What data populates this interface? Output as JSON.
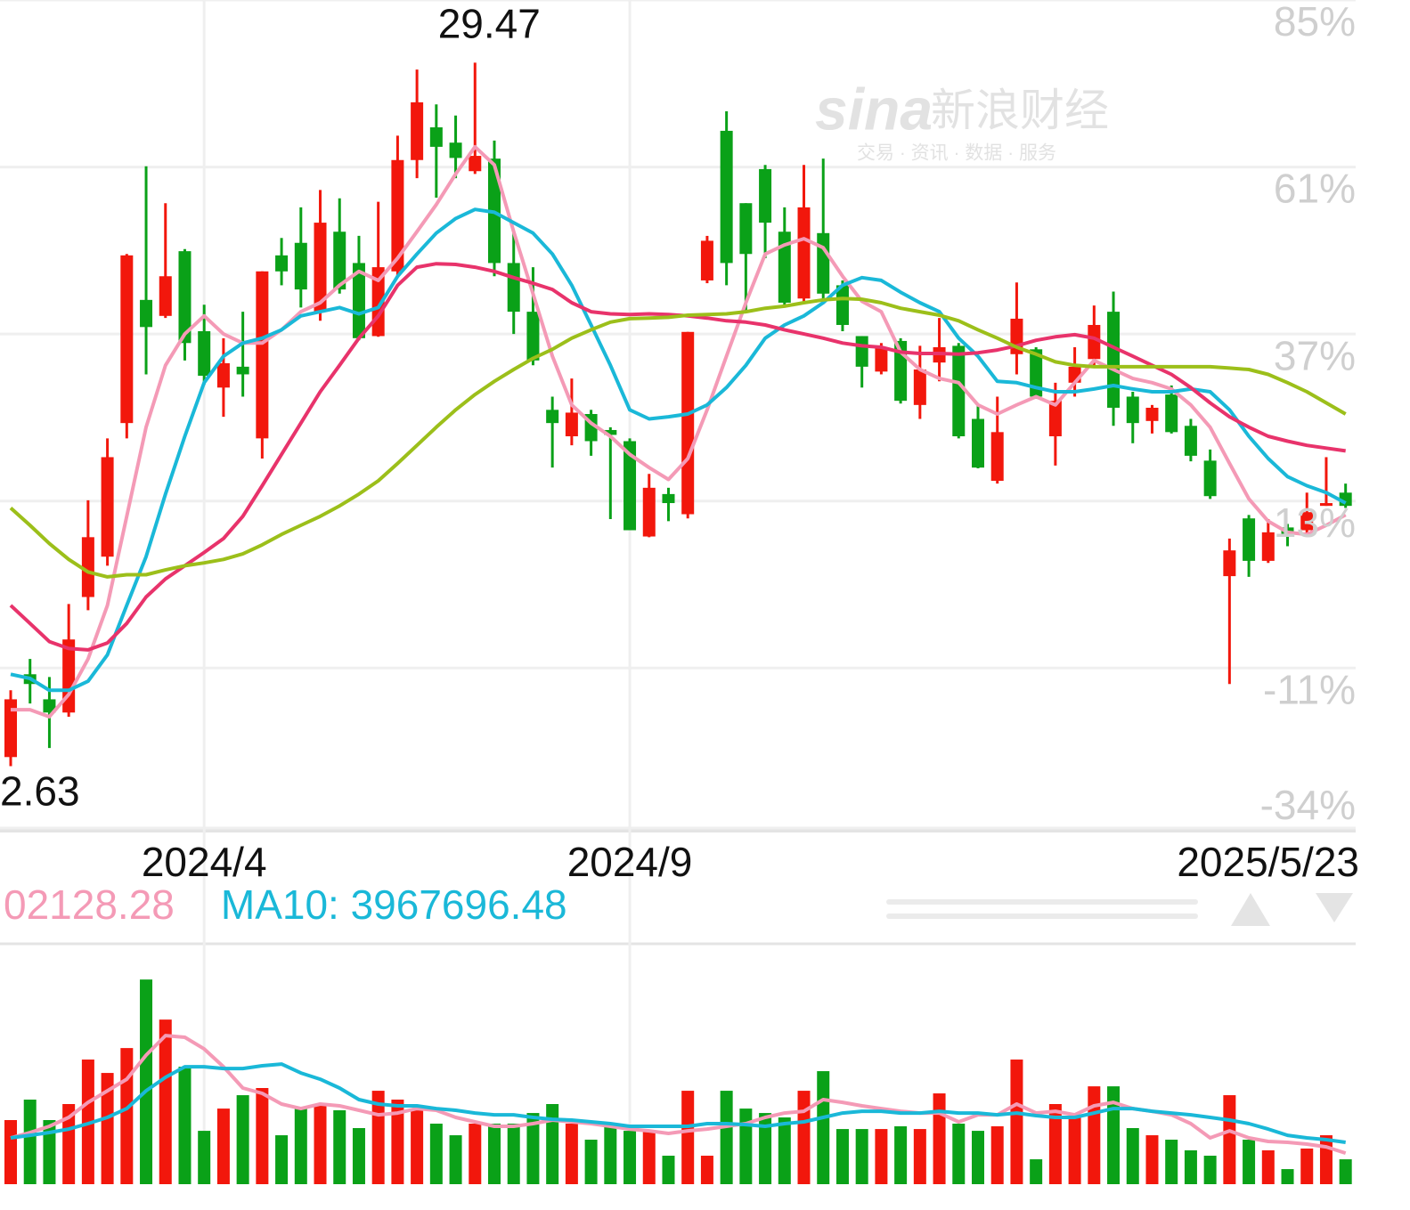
{
  "chart_data": [
    {
      "type": "candlestick",
      "categories": [
        null,
        null,
        null,
        null,
        null,
        null,
        null,
        null,
        null,
        null,
        "2024/4",
        null,
        null,
        null,
        null,
        null,
        null,
        null,
        null,
        null,
        null,
        null,
        null,
        null,
        null,
        null,
        null,
        null,
        null,
        null,
        null,
        null,
        "2024/9",
        null,
        null,
        null,
        null,
        null,
        null,
        null,
        null,
        null,
        null,
        null,
        null,
        null,
        null,
        null,
        null,
        null,
        null,
        null,
        null,
        null,
        null,
        null,
        null,
        null,
        null,
        null,
        null,
        null,
        null,
        null,
        null,
        null,
        null,
        null,
        null,
        "2025/5/23"
      ],
      "open": [
        -23.8,
        -11.9,
        -15.5,
        -17.4,
        -0.8,
        5,
        24.2,
        41.9,
        39.6,
        48.9,
        37.4,
        29.3,
        32.3,
        22,
        48.3,
        50.1,
        40.2,
        51.7,
        47.2,
        36.7,
        46,
        62,
        66.7,
        64.5,
        60.4,
        62.2,
        47.2,
        40.2,
        26.1,
        22.3,
        25.5,
        23.2,
        21.6,
        7.9,
        14,
        11.1,
        44.7,
        66.2,
        55.8,
        60.7,
        51.7,
        42.1,
        51.5,
        44,
        36.7,
        31.6,
        36,
        26.8,
        32.9,
        35.3,
        24.8,
        15.9,
        34.1,
        34.8,
        22.3,
        30,
        33.4,
        40.2,
        28,
        24.5,
        28.3,
        23.8,
        18.8,
        2.2,
        10.5,
        4.4,
        9.2,
        8.8,
        12.3,
        14.2
      ],
      "high": [
        -14.2,
        -9.7,
        -12.3,
        -1.8,
        13.1,
        22,
        48.5,
        61.1,
        55.8,
        49.2,
        41.2,
        36.4,
        40.2,
        46,
        50.8,
        55.2,
        57.7,
        56.5,
        51.1,
        56,
        65.5,
        75,
        70,
        68.4,
        76,
        64.8,
        51.7,
        46.6,
        28,
        30.6,
        26.1,
        23.6,
        22,
        16.9,
        14.9,
        37.3,
        51.1,
        69,
        55.8,
        61.3,
        55.2,
        61.3,
        62.2,
        44.7,
        36.7,
        35.7,
        36.4,
        35.3,
        39.3,
        35.7,
        26.8,
        28,
        44.4,
        35.1,
        30,
        35.1,
        41.1,
        43.1,
        28.7,
        26.8,
        29.6,
        24.8,
        20.4,
        7.6,
        11,
        10.4,
        9.7,
        14.2,
        19.3,
        15.5
      ],
      "low": [
        -25.1,
        -16.1,
        -22.5,
        -18,
        -2.7,
        3.7,
        22,
        31.2,
        39.3,
        33.2,
        29.7,
        25.1,
        28,
        19.1,
        44,
        40.8,
        38.9,
        42.8,
        36.1,
        36.6,
        45.3,
        59.4,
        56.6,
        59.4,
        60,
        45.3,
        37,
        32.5,
        17.8,
        21,
        19.5,
        10.4,
        8.8,
        7.8,
        10.1,
        10.5,
        44.3,
        44,
        40.2,
        47.9,
        41.2,
        41.5,
        42.1,
        37.4,
        29.3,
        31.2,
        27,
        24.8,
        30.2,
        22,
        17.7,
        15.5,
        31.2,
        27.7,
        18.1,
        28,
        32.1,
        23.8,
        21.3,
        22.7,
        22.7,
        18.7,
        13.3,
        -13.3,
        2.1,
        4.1,
        6.5,
        8.2,
        12.3,
        12
      ],
      "close": [
        -15.5,
        -13.3,
        -17.4,
        -6.9,
        7.8,
        19.3,
        48.3,
        38,
        45.3,
        35.7,
        31,
        32.8,
        31.2,
        46,
        46,
        43.4,
        53,
        43.4,
        36.4,
        46.6,
        62,
        70.3,
        63.9,
        62.3,
        62.6,
        47.2,
        40.2,
        33.2,
        24.2,
        25.7,
        21.6,
        22.5,
        8.8,
        14.9,
        12.7,
        37.3,
        50.4,
        47.2,
        48.5,
        53,
        41.5,
        55.2,
        42.8,
        38.3,
        32.3,
        35.1,
        27.4,
        31.9,
        35.1,
        22.3,
        17.8,
        22.9,
        39.2,
        28,
        27.4,
        32.3,
        38.3,
        26.4,
        24.2,
        26.4,
        22.9,
        19.5,
        13.7,
        5.9,
        4.4,
        8.5,
        8.2,
        11.4,
        12.7,
        12.3
      ],
      "up_color": "#f2170c",
      "down_color": "#0aa118",
      "series": [
        {
          "color": "#f49ab6",
          "values": [
            -17,
            -17,
            -18,
            -14.8,
            -9.7,
            -2,
            10.8,
            23.6,
            32.5,
            37,
            39.6,
            37,
            35.7,
            35.7,
            37.6,
            40.2,
            41.5,
            44,
            46,
            44.7,
            47.9,
            51.7,
            55.6,
            60,
            63.9,
            61.3,
            51.7,
            42.8,
            33.8,
            26.8,
            24.2,
            22.3,
            19.7,
            17.8,
            16.1,
            19.1,
            26.1,
            33.8,
            41.5,
            48.5,
            49.8,
            50.7,
            49.4,
            45.3,
            41.7,
            40.2,
            34.4,
            31.9,
            30.6,
            30,
            26.8,
            25.5,
            26.8,
            28,
            26.8,
            30,
            33.2,
            31.9,
            30.6,
            30,
            29.1,
            26.8,
            23.6,
            18.4,
            13.3,
            10.1,
            8.5,
            8.2,
            9.5,
            11
          ]
        },
        {
          "color": "#1ab8d8",
          "values": [
            -11.9,
            -12.5,
            -14.2,
            -14.2,
            -12.9,
            -9.1,
            -2,
            5,
            14,
            22.3,
            30,
            33.8,
            35.7,
            36.4,
            37.6,
            39.6,
            40.2,
            40.8,
            39.9,
            40.8,
            45.3,
            48.5,
            51.5,
            53.6,
            54.9,
            54.5,
            53,
            51.5,
            48.5,
            44,
            38.3,
            32.5,
            26.1,
            24.8,
            25.1,
            25.5,
            26.8,
            29.3,
            32.5,
            36.4,
            38.3,
            39.6,
            41.5,
            44,
            45.1,
            44.7,
            43,
            41.5,
            40.2,
            36.4,
            33.8,
            30.2,
            30,
            29.3,
            28.7,
            28.7,
            29.1,
            29.6,
            29.1,
            28.7,
            28.7,
            29.1,
            28.7,
            26.1,
            22.3,
            19.1,
            16.5,
            15.2,
            14.2,
            12.7
          ]
        },
        {
          "color": "#e8336b",
          "values": [
            -2,
            -4.6,
            -7.2,
            -8.2,
            -8.4,
            -7.4,
            -4.6,
            -0.8,
            1.8,
            3.7,
            5.6,
            7.6,
            10.8,
            15.2,
            19.7,
            24.2,
            28.7,
            32.5,
            36.4,
            39.6,
            44,
            46.6,
            47.1,
            47,
            46.6,
            46,
            45.1,
            44.3,
            43.4,
            41.5,
            40.2,
            39.9,
            39.8,
            39.9,
            39.8,
            39.6,
            39.3,
            38.9,
            38.7,
            38.3,
            37.6,
            37,
            36.4,
            35.7,
            35.3,
            35.1,
            34.4,
            34.2,
            34.2,
            34.1,
            34.3,
            34.7,
            35.3,
            36.1,
            36.6,
            36.9,
            36.4,
            35.1,
            33.8,
            32.5,
            31.2,
            29.3,
            27.1,
            25.1,
            23.6,
            22.3,
            21.6,
            21,
            20.6,
            20.2
          ]
        },
        {
          "color": "#9cbf1a",
          "values": [
            12,
            9.5,
            6.9,
            4.6,
            2.8,
            2.1,
            2.4,
            2.4,
            3.1,
            3.7,
            4.1,
            4.6,
            5.4,
            6.7,
            8.2,
            9.5,
            10.8,
            12.3,
            14,
            15.9,
            18.4,
            21,
            23.6,
            26.1,
            28.3,
            30.2,
            31.9,
            33.5,
            34.8,
            36.4,
            37.6,
            38.7,
            39.2,
            39.3,
            39.4,
            39.7,
            39.8,
            39.9,
            40.2,
            40.7,
            41,
            41.5,
            41.9,
            42.1,
            42,
            41.5,
            40.7,
            40.2,
            39.7,
            38.9,
            37.6,
            36.4,
            35.1,
            34.1,
            33,
            32.5,
            32.3,
            32.3,
            32.3,
            32.3,
            32.3,
            32.3,
            32.3,
            32.1,
            31.9,
            31.2,
            30,
            28.7,
            27.1,
            25.5
          ]
        }
      ],
      "ylim": [
        -34,
        85
      ],
      "yticks": [
        {
          "value": 85,
          "label": "85%"
        },
        {
          "value": 61,
          "label": "61%"
        },
        {
          "value": 37,
          "label": "37%"
        },
        {
          "value": 13,
          "label": "13%"
        },
        {
          "value": -11,
          "label": "-11%"
        },
        {
          "value": -34,
          "label": "-34%"
        }
      ],
      "grid": true,
      "max_label": 29.47,
      "min_label": 2.63,
      "watermark": {
        "brand": "sina",
        "name": "新浪财经",
        "tagline": "交易 · 资讯 · 数据 · 服务"
      }
    },
    {
      "type": "bar",
      "values": [
        6080000,
        8020000,
        6080000,
        7600000,
        11820000,
        10550000,
        12910000,
        19410000,
        15610000,
        11140000,
        5060000,
        7170000,
        8440000,
        9120000,
        4640000,
        7340000,
        7600000,
        7010000,
        5320000,
        8860000,
        8020000,
        7170000,
        5740000,
        4640000,
        5740000,
        5740000,
        5740000,
        6750000,
        7600000,
        5740000,
        4220000,
        5490000,
        5060000,
        5060000,
        2700000,
        8860000,
        2700000,
        8860000,
        7170000,
        6750000,
        6330000,
        8860000,
        10720000,
        5230000,
        5230000,
        5230000,
        5490000,
        5230000,
        8610000,
        5740000,
        5060000,
        5490000,
        11820000,
        2360000,
        7600000,
        6330000,
        9280000,
        9280000,
        5320000,
        4640000,
        4220000,
        3210000,
        2700000,
        8440000,
        4220000,
        3210000,
        1430000,
        3380000,
        4640000,
        2360000
      ],
      "series": [
        {
          "color": "#f49ab6",
          "values": [
            4390000,
            4900000,
            5490000,
            6330000,
            7760000,
            8860000,
            9960000,
            12240000,
            14090000,
            13930000,
            12830000,
            11140000,
            9120000,
            8610000,
            7600000,
            7170000,
            7600000,
            7430000,
            7010000,
            6580000,
            6750000,
            7170000,
            7010000,
            6330000,
            5910000,
            5490000,
            5490000,
            5740000,
            6080000,
            5910000,
            5740000,
            5490000,
            5230000,
            5060000,
            4810000,
            5060000,
            5230000,
            5490000,
            5740000,
            6330000,
            6750000,
            6920000,
            8020000,
            7760000,
            7430000,
            7170000,
            6920000,
            6750000,
            6750000,
            5910000,
            6580000,
            6580000,
            7600000,
            6750000,
            6920000,
            6580000,
            7430000,
            7760000,
            7170000,
            6920000,
            6580000,
            5740000,
            4390000,
            5060000,
            4390000,
            4050000,
            3970000,
            3800000,
            3540000,
            2950000
          ]
        },
        {
          "color": "#1ab8d8",
          "values": [
            4390000,
            4640000,
            4900000,
            5230000,
            5740000,
            6330000,
            7170000,
            8860000,
            10130000,
            11140000,
            11140000,
            10970000,
            10970000,
            11230000,
            11390000,
            10550000,
            9960000,
            9120000,
            8020000,
            7600000,
            7430000,
            7430000,
            7170000,
            7010000,
            6750000,
            6580000,
            6580000,
            6330000,
            6160000,
            6080000,
            5910000,
            5740000,
            5490000,
            5490000,
            5490000,
            5490000,
            5740000,
            5740000,
            5650000,
            5490000,
            5740000,
            5910000,
            6330000,
            6750000,
            6920000,
            6920000,
            6750000,
            6750000,
            6920000,
            6750000,
            6750000,
            6580000,
            6750000,
            6500000,
            6330000,
            6330000,
            6750000,
            7170000,
            7170000,
            6920000,
            6750000,
            6580000,
            6330000,
            6080000,
            5740000,
            5230000,
            4640000,
            4390000,
            4220000,
            3970000
          ]
        }
      ],
      "ylim": [
        0,
        22800000
      ],
      "legend": [
        "02128.28",
        "MA10: 3967696.48"
      ]
    }
  ]
}
